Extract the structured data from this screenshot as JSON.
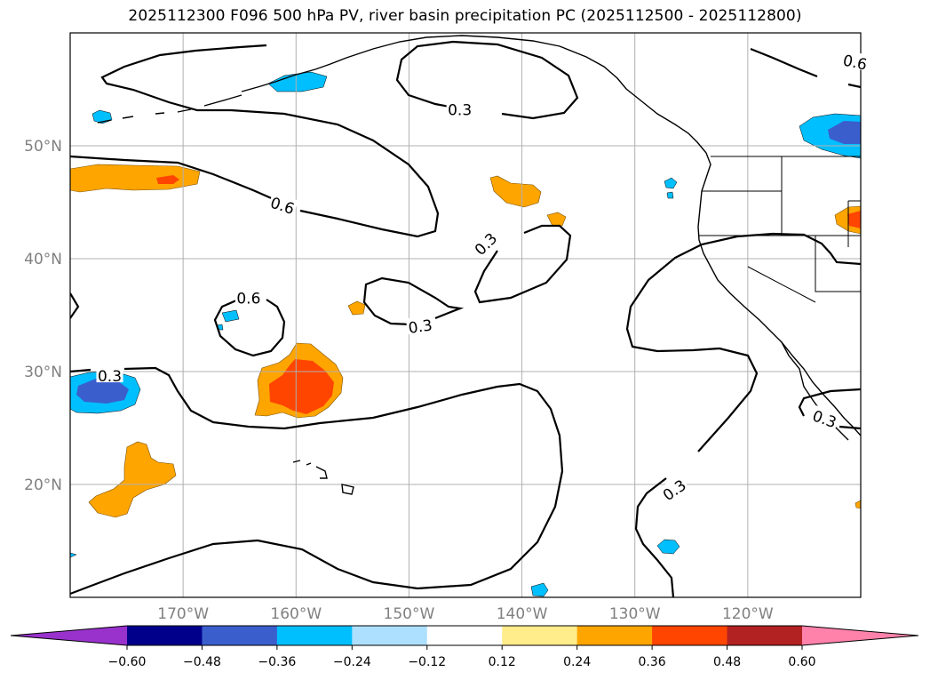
{
  "title": "2025112300 F096 500 hPa PV, river basin precipitation PC (2025112500 - 2025112800)",
  "axes": {
    "lat_labels": [
      {
        "lat": 50,
        "label": "50°N"
      },
      {
        "lat": 40,
        "label": "40°N"
      },
      {
        "lat": 30,
        "label": "30°N"
      },
      {
        "lat": 20,
        "label": "20°N"
      }
    ],
    "lon_labels": [
      {
        "lon": -170,
        "label": "170°W"
      },
      {
        "lon": -160,
        "label": "160°W"
      },
      {
        "lon": -150,
        "label": "150°W"
      },
      {
        "lon": -140,
        "label": "140°W"
      },
      {
        "lon": -130,
        "label": "130°W"
      },
      {
        "lon": -120,
        "label": "120°W"
      }
    ],
    "lon_range": [
      -180,
      -110
    ],
    "lat_range": [
      10,
      60
    ]
  },
  "contour_labels": [
    {
      "text": "0.3",
      "lon": -145.5,
      "lat": 53.2,
      "angle": 0
    },
    {
      "text": "0.6",
      "lon": -110.5,
      "lat": 57.4,
      "angle": 12
    },
    {
      "text": "0.6",
      "lon": -161.2,
      "lat": 44.7,
      "angle": 18
    },
    {
      "text": "0.3",
      "lon": -143.2,
      "lat": 41.3,
      "angle": -45
    },
    {
      "text": "0.6",
      "lon": -164.2,
      "lat": 36.5,
      "angle": 0
    },
    {
      "text": "0.3",
      "lon": -149.0,
      "lat": 34.0,
      "angle": -8
    },
    {
      "text": "0.3",
      "lon": -176.5,
      "lat": 29.6,
      "angle": 0
    },
    {
      "text": "0.3",
      "lon": -126.5,
      "lat": 19.5,
      "angle": -35
    },
    {
      "text": "0.3",
      "lon": -113.2,
      "lat": 25.8,
      "angle": 20
    }
  ],
  "colorbar": {
    "colors": [
      "#9932CC",
      "#00008B",
      "#3A5FCD",
      "#00BFFF",
      "#ADDFFF",
      "#FFFFFF",
      "#FFEC8B",
      "#FFA500",
      "#FF4500",
      "#B22222",
      "#FF82AB"
    ],
    "tick_labels": [
      "−0.60",
      "−0.48",
      "−0.36",
      "−0.24",
      "−0.12",
      "0.12",
      "0.24",
      "0.36",
      "0.48",
      "0.60"
    ]
  },
  "colors": {
    "grid": "#b0b0b0",
    "axis_label": "#808080",
    "coast": "#000000"
  }
}
